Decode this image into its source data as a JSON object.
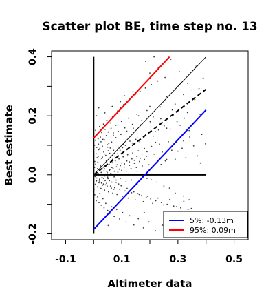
{
  "chart_data": {
    "type": "scatter",
    "title": "Scatter plot BE, time step no. 13",
    "xlabel": "Altimeter data",
    "ylabel": "Best estimate",
    "xlim": [
      -0.15,
      0.55
    ],
    "ylim": [
      -0.22,
      0.42
    ],
    "x_ticks": [
      -0.1,
      0.1,
      0.3,
      0.5
    ],
    "x_tick_labels": [
      "-0.1",
      "0.1",
      "0.3",
      "0.5"
    ],
    "x_minor_ticks": [
      0.0,
      0.2,
      0.4
    ],
    "y_ticks": [
      -0.2,
      0.0,
      0.2,
      0.4
    ],
    "y_tick_labels": [
      "-0.2",
      "0.0",
      "0.2",
      "0.4"
    ],
    "y_minor_ticks": [
      -0.1,
      0.1,
      0.3
    ],
    "grid": false,
    "legend_position": "bottom-right",
    "reference_lines": [
      {
        "kind": "vertical-axis",
        "color": "#000000",
        "x": [
          0.0,
          0.0
        ],
        "y": [
          -0.2,
          0.4
        ]
      },
      {
        "kind": "horizontal-axis",
        "color": "#000000",
        "x": [
          0.0,
          0.4
        ],
        "y": [
          0.0,
          0.0
        ]
      },
      {
        "kind": "identity",
        "color": "#000000",
        "style": "solid",
        "x": [
          0.0,
          0.4
        ],
        "y": [
          0.0,
          0.4
        ]
      },
      {
        "kind": "regression",
        "color": "#000000",
        "style": "dashed",
        "x": [
          0.0,
          0.4
        ],
        "y": [
          0.0,
          0.29
        ]
      },
      {
        "kind": "percentile-5",
        "color": "#0000ff",
        "style": "solid",
        "x": [
          0.0,
          0.4
        ],
        "y": [
          -0.185,
          0.22
        ]
      },
      {
        "kind": "percentile-95",
        "color": "#ff0000",
        "style": "solid",
        "x": [
          0.0,
          0.27
        ],
        "y": [
          0.125,
          0.4
        ]
      }
    ],
    "legend": [
      {
        "label": "5%: -0.13m",
        "color": "#0000ff"
      },
      {
        "label": "95%:  0.09m",
        "color": "#ff0000"
      }
    ],
    "points": [
      [
        0.012,
        0.058
      ],
      [
        0.018,
        0.085
      ],
      [
        0.025,
        0.03
      ],
      [
        0.033,
        0.12
      ],
      [
        0.041,
        -0.02
      ],
      [
        0.05,
        0.094
      ],
      [
        0.061,
        0.005
      ],
      [
        0.07,
        0.142
      ],
      [
        0.002,
        0.002
      ],
      [
        0.005,
        -0.006
      ],
      [
        0.008,
        0.012
      ],
      [
        0.011,
        -0.011
      ],
      [
        0.014,
        0.021
      ],
      [
        0.017,
        0.004
      ],
      [
        0.021,
        -0.015
      ],
      [
        0.024,
        0.017
      ],
      [
        0.027,
        0.008
      ],
      [
        0.03,
        -0.009
      ],
      [
        0.034,
        0.026
      ],
      [
        0.037,
        0.013
      ],
      [
        0.04,
        -0.004
      ],
      [
        0.044,
        0.03
      ],
      [
        0.047,
        0.011
      ],
      [
        0.051,
        -0.013
      ],
      [
        0.055,
        0.036
      ],
      [
        0.058,
        0.018
      ],
      [
        0.062,
        0.004
      ],
      [
        0.066,
        0.041
      ],
      [
        0.069,
        0.022
      ],
      [
        0.073,
        -0.007
      ],
      [
        0.077,
        0.047
      ],
      [
        0.081,
        0.027
      ],
      [
        0.086,
        0.009
      ],
      [
        0.09,
        0.054
      ],
      [
        0.095,
        0.031
      ],
      [
        0.1,
        0.015
      ],
      [
        0.105,
        0.061
      ],
      [
        0.11,
        0.037
      ],
      [
        0.116,
        0.012
      ],
      [
        0.121,
        0.068
      ],
      [
        0.127,
        0.044
      ],
      [
        0.133,
        0.021
      ],
      [
        0.139,
        0.074
      ],
      [
        0.145,
        0.049
      ],
      [
        0.152,
        0.025
      ],
      [
        0.159,
        0.081
      ],
      [
        0.166,
        0.056
      ],
      [
        0.173,
        0.03
      ],
      [
        0.181,
        0.089
      ],
      [
        0.189,
        0.063
      ],
      [
        0.197,
        0.034
      ],
      [
        0.206,
        0.096
      ],
      [
        0.215,
        0.07
      ],
      [
        0.224,
        0.041
      ],
      [
        0.234,
        0.104
      ],
      [
        0.244,
        0.077
      ],
      [
        0.255,
        0.047
      ],
      [
        0.266,
        0.112
      ],
      [
        0.278,
        0.083
      ],
      [
        0.29,
        0.053
      ],
      [
        0.302,
        0.12
      ],
      [
        0.315,
        0.09
      ],
      [
        0.328,
        0.058
      ],
      [
        0.342,
        0.128
      ],
      [
        0.356,
        0.098
      ],
      [
        0.37,
        0.064
      ],
      [
        0.385,
        0.137
      ],
      [
        0.398,
        0.105
      ],
      [
        0.004,
        0.045
      ],
      [
        0.006,
        -0.032
      ],
      [
        0.009,
        0.071
      ],
      [
        0.013,
        -0.041
      ],
      [
        0.016,
        0.062
      ],
      [
        0.019,
        -0.027
      ],
      [
        0.022,
        0.09
      ],
      [
        0.026,
        -0.046
      ],
      [
        0.029,
        0.055
      ],
      [
        0.032,
        -0.035
      ],
      [
        0.036,
        0.077
      ],
      [
        0.039,
        -0.052
      ],
      [
        0.043,
        0.066
      ],
      [
        0.046,
        -0.029
      ],
      [
        0.049,
        0.102
      ],
      [
        0.053,
        -0.058
      ],
      [
        0.057,
        0.073
      ],
      [
        0.06,
        -0.038
      ],
      [
        0.064,
        0.111
      ],
      [
        0.068,
        -0.062
      ],
      [
        0.071,
        0.083
      ],
      [
        0.075,
        -0.044
      ],
      [
        0.079,
        0.126
      ],
      [
        0.083,
        -0.067
      ],
      [
        0.088,
        0.094
      ],
      [
        0.092,
        -0.049
      ],
      [
        0.097,
        0.137
      ],
      [
        0.102,
        -0.073
      ],
      [
        0.107,
        0.103
      ],
      [
        0.112,
        -0.055
      ],
      [
        0.118,
        0.148
      ],
      [
        0.123,
        -0.079
      ],
      [
        0.129,
        0.114
      ],
      [
        0.135,
        -0.061
      ],
      [
        0.141,
        0.158
      ],
      [
        0.148,
        -0.085
      ],
      [
        0.155,
        0.125
      ],
      [
        0.162,
        -0.067
      ],
      [
        0.169,
        0.17
      ],
      [
        0.177,
        -0.091
      ],
      [
        0.185,
        0.136
      ],
      [
        0.193,
        -0.073
      ],
      [
        0.201,
        0.18
      ],
      [
        0.21,
        -0.097
      ],
      [
        0.219,
        0.147
      ],
      [
        0.229,
        -0.079
      ],
      [
        0.239,
        0.19
      ],
      [
        0.249,
        -0.102
      ],
      [
        0.26,
        0.158
      ],
      [
        0.271,
        -0.084
      ],
      [
        0.283,
        0.201
      ],
      [
        0.295,
        -0.108
      ],
      [
        0.308,
        0.168
      ],
      [
        0.321,
        -0.09
      ],
      [
        0.334,
        0.211
      ],
      [
        0.348,
        -0.114
      ],
      [
        0.003,
        0.025
      ],
      [
        0.007,
        0.036
      ],
      [
        0.01,
        -0.021
      ],
      [
        0.015,
        0.043
      ],
      [
        0.02,
        -0.024
      ],
      [
        0.023,
        0.05
      ],
      [
        0.028,
        -0.028
      ],
      [
        0.031,
        0.06
      ],
      [
        0.035,
        -0.031
      ],
      [
        0.038,
        0.07
      ],
      [
        0.042,
        -0.034
      ],
      [
        0.045,
        0.048
      ],
      [
        0.048,
        -0.038
      ],
      [
        0.052,
        0.081
      ],
      [
        0.056,
        -0.02
      ],
      [
        0.059,
        0.091
      ],
      [
        0.063,
        -0.045
      ],
      [
        0.067,
        0.052
      ],
      [
        0.072,
        -0.049
      ],
      [
        0.076,
        0.063
      ],
      [
        0.08,
        -0.026
      ],
      [
        0.085,
        0.071
      ],
      [
        0.089,
        -0.031
      ],
      [
        0.094,
        0.083
      ],
      [
        0.098,
        -0.037
      ],
      [
        0.103,
        0.092
      ],
      [
        0.108,
        -0.041
      ],
      [
        0.113,
        0.1
      ],
      [
        0.119,
        -0.046
      ],
      [
        0.125,
        0.093
      ],
      [
        0.131,
        -0.052
      ],
      [
        0.137,
        0.108
      ],
      [
        0.143,
        -0.058
      ],
      [
        0.15,
        0.12
      ],
      [
        0.157,
        -0.064
      ],
      [
        0.164,
        0.112
      ],
      [
        0.171,
        -0.07
      ],
      [
        0.179,
        0.128
      ],
      [
        0.187,
        -0.076
      ],
      [
        0.195,
        0.14
      ],
      [
        0.203,
        -0.082
      ],
      [
        0.212,
        0.131
      ],
      [
        0.221,
        -0.088
      ],
      [
        0.231,
        0.152
      ],
      [
        0.241,
        -0.094
      ],
      [
        0.251,
        0.166
      ],
      [
        0.262,
        -0.1
      ],
      [
        0.273,
        0.155
      ],
      [
        0.285,
        -0.106
      ],
      [
        0.297,
        0.18
      ],
      [
        0.31,
        -0.112
      ],
      [
        0.323,
        0.192
      ],
      [
        0.336,
        -0.118
      ],
      [
        0.35,
        0.183
      ],
      [
        0.364,
        -0.124
      ],
      [
        0.379,
        0.205
      ],
      [
        0.001,
        0.063
      ],
      [
        0.001,
        -0.05
      ],
      [
        0.003,
        0.1
      ],
      [
        0.004,
        -0.068
      ],
      [
        0.006,
        0.117
      ],
      [
        0.007,
        0.151
      ],
      [
        0.009,
        -0.088
      ],
      [
        0.011,
        0.093
      ],
      [
        0.012,
        0.136
      ],
      [
        0.014,
        -0.075
      ],
      [
        0.016,
        0.122
      ],
      [
        0.017,
        0.104
      ],
      [
        0.019,
        -0.094
      ],
      [
        0.021,
        0.164
      ],
      [
        0.022,
        -0.063
      ],
      [
        0.024,
        0.128
      ],
      [
        0.026,
        0.112
      ],
      [
        0.027,
        -0.103
      ],
      [
        0.029,
        0.143
      ],
      [
        0.031,
        0.097
      ],
      [
        0.033,
        -0.081
      ],
      [
        0.035,
        0.172
      ],
      [
        0.037,
        -0.112
      ],
      [
        0.039,
        0.118
      ],
      [
        0.041,
        0.154
      ],
      [
        0.043,
        -0.097
      ],
      [
        0.045,
        0.133
      ],
      [
        0.047,
        0.185
      ],
      [
        0.05,
        -0.121
      ],
      [
        0.052,
        0.145
      ],
      [
        0.054,
        0.106
      ],
      [
        0.057,
        -0.132
      ],
      [
        0.059,
        0.176
      ],
      [
        0.062,
        0.158
      ],
      [
        0.064,
        -0.108
      ],
      [
        0.067,
        0.196
      ],
      [
        0.07,
        0.134
      ],
      [
        0.073,
        -0.141
      ],
      [
        0.076,
        0.205
      ],
      [
        0.079,
        0.168
      ],
      [
        0.082,
        -0.118
      ],
      [
        0.085,
        0.216
      ],
      [
        0.088,
        0.147
      ],
      [
        0.092,
        -0.15
      ],
      [
        0.095,
        0.227
      ],
      [
        0.099,
        0.181
      ],
      [
        0.103,
        -0.128
      ],
      [
        0.107,
        0.238
      ],
      [
        0.111,
        0.159
      ],
      [
        0.115,
        -0.16
      ],
      [
        0.119,
        0.25
      ],
      [
        0.124,
        0.192
      ],
      [
        0.128,
        -0.139
      ],
      [
        0.133,
        0.26
      ],
      [
        0.138,
        0.171
      ],
      [
        0.143,
        -0.17
      ],
      [
        0.148,
        0.272
      ],
      [
        0.154,
        0.205
      ],
      [
        0.159,
        -0.149
      ],
      [
        0.165,
        0.283
      ],
      [
        0.171,
        0.184
      ],
      [
        0.177,
        -0.18
      ],
      [
        0.184,
        0.294
      ],
      [
        0.19,
        0.218
      ],
      [
        0.197,
        -0.16
      ],
      [
        0.205,
        0.306
      ],
      [
        0.212,
        0.196
      ],
      [
        0.22,
        -0.19
      ],
      [
        0.228,
        0.318
      ],
      [
        0.237,
        0.23
      ],
      [
        0.245,
        -0.171
      ],
      [
        0.254,
        0.33
      ],
      [
        0.01,
        0.2
      ],
      [
        0.018,
        0.227
      ],
      [
        0.028,
        -0.155
      ],
      [
        0.04,
        0.21
      ],
      [
        0.052,
        -0.172
      ],
      [
        0.066,
        0.232
      ],
      [
        0.08,
        0.058
      ],
      [
        0.095,
        0.248
      ],
      [
        0.11,
        0.268
      ],
      [
        0.125,
        0.003
      ],
      [
        0.14,
        0.282
      ],
      [
        0.155,
        0.012
      ],
      [
        0.17,
        0.298
      ],
      [
        0.185,
        0.385
      ],
      [
        0.2,
        0.345
      ],
      [
        0.215,
        0.4
      ],
      [
        0.23,
        0.362
      ],
      [
        0.245,
        0.378
      ],
      [
        0.26,
        0.052
      ],
      [
        0.275,
        0.392
      ],
      [
        0.29,
        0.24
      ],
      [
        0.305,
        0.35
      ],
      [
        0.32,
        0.272
      ],
      [
        0.335,
        0.31
      ],
      [
        0.35,
        0.288
      ],
      [
        0.365,
        0.368
      ],
      [
        0.375,
        0.292
      ],
      [
        0.39,
        0.328
      ],
      [
        0.38,
        0.04
      ],
      [
        0.36,
        0.255
      ],
      [
        0.34,
        0.15
      ],
      [
        0.32,
        0.115
      ],
      [
        0.3,
        0.08
      ],
      [
        0.28,
        0.22
      ],
      [
        0.26,
        0.265
      ],
      [
        0.24,
        0.035
      ],
      [
        0.22,
        0.11
      ],
      [
        0.2,
        0.232
      ],
      [
        0.18,
        -0.128
      ],
      [
        0.16,
        0.2
      ],
      [
        0.34,
        -0.085
      ],
      [
        0.32,
        -0.072
      ],
      [
        0.29,
        -0.062
      ],
      [
        0.27,
        -0.045
      ],
      [
        0.25,
        -0.038
      ],
      [
        0.225,
        -0.025
      ],
      [
        0.205,
        -0.017
      ],
      [
        0.19,
        -0.012
      ],
      [
        0.175,
        -0.006
      ],
      [
        0.155,
        -0.03
      ],
      [
        0.135,
        -0.018
      ],
      [
        0.115,
        -0.024
      ],
      [
        0.095,
        -0.012
      ],
      [
        0.08,
        -0.018
      ],
      [
        0.065,
        -0.025
      ],
      [
        0.05,
        -0.008
      ],
      [
        0.035,
        -0.012
      ],
      [
        0.02,
        -0.019
      ],
      [
        0.008,
        -0.002
      ],
      [
        0.013,
        0.007
      ],
      [
        0.022,
        0.014
      ],
      [
        0.031,
        0.002
      ],
      [
        0.039,
        0.02
      ],
      [
        0.048,
        0.007
      ],
      [
        0.056,
        0.015
      ],
      [
        0.065,
        0.025
      ],
      [
        0.074,
        0.012
      ],
      [
        0.083,
        0.034
      ],
      [
        0.091,
        0.019
      ],
      [
        0.1,
        0.04
      ],
      [
        0.109,
        0.026
      ],
      [
        0.118,
        0.047
      ],
      [
        0.127,
        0.032
      ],
      [
        0.136,
        0.054
      ],
      [
        0.145,
        0.039
      ],
      [
        0.154,
        0.062
      ],
      [
        0.163,
        0.045
      ],
      [
        0.172,
        0.07
      ],
      [
        0.181,
        0.052
      ],
      [
        0.19,
        0.078
      ]
    ]
  }
}
